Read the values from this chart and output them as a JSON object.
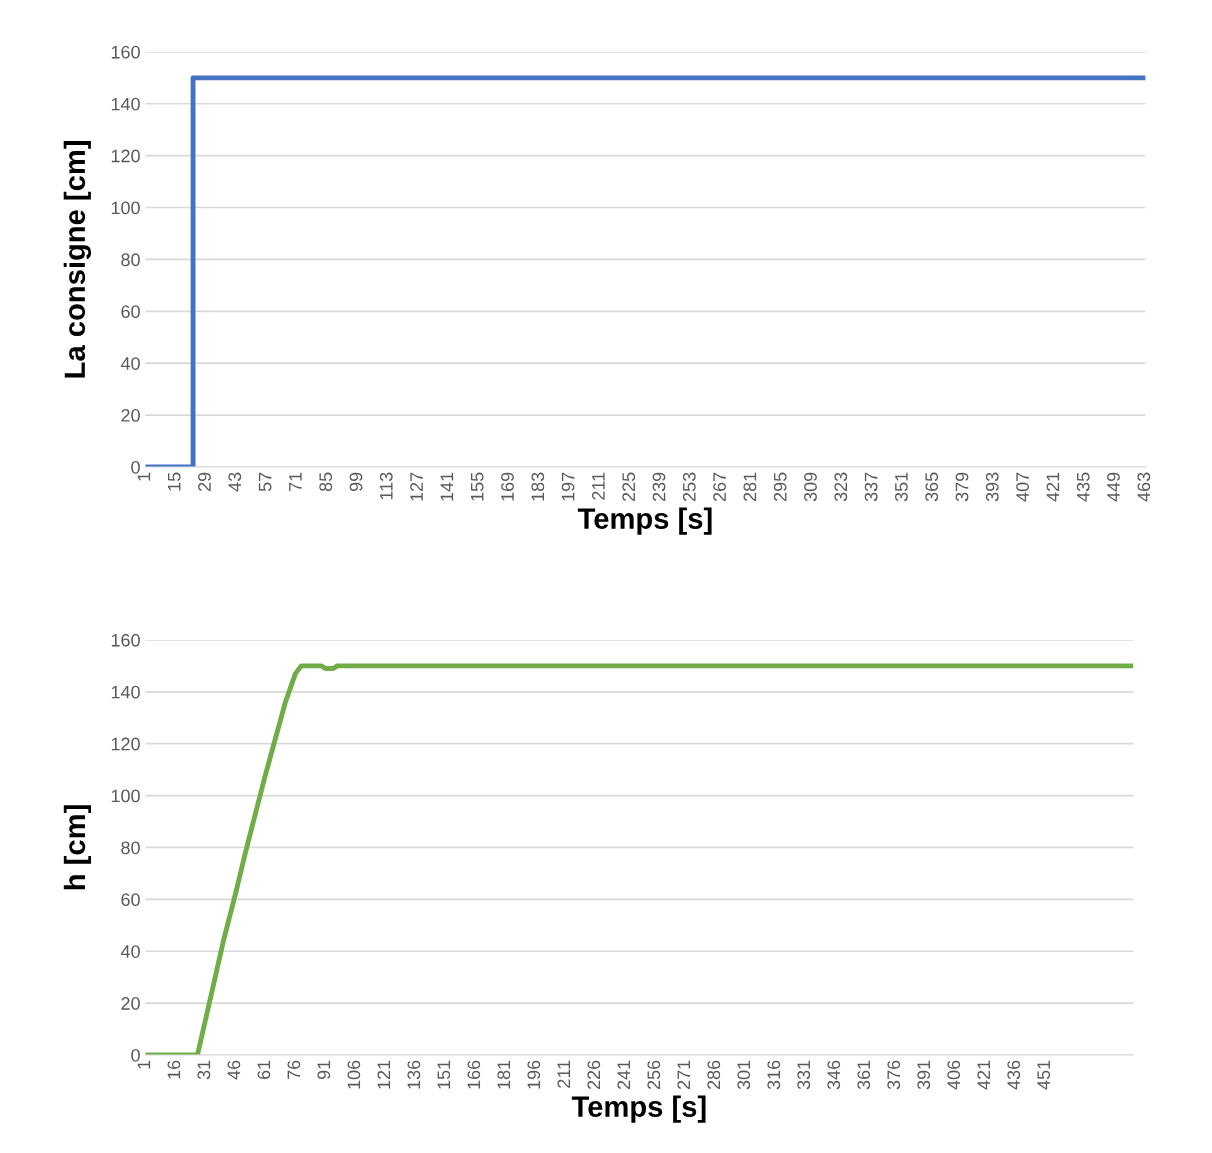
{
  "chart_data": [
    {
      "type": "line",
      "xlabel": "Temps [s]",
      "ylabel": "La consigne [cm]",
      "xlim": [
        1,
        463
      ],
      "xticks": [
        1,
        15,
        29,
        43,
        57,
        71,
        85,
        99,
        113,
        127,
        141,
        155,
        169,
        183,
        197,
        211,
        225,
        239,
        253,
        267,
        281,
        295,
        309,
        323,
        337,
        351,
        365,
        379,
        393,
        407,
        421,
        435,
        449,
        463
      ],
      "ylim": [
        0,
        160
      ],
      "yticks": [
        0,
        20,
        40,
        60,
        80,
        100,
        120,
        140,
        160
      ],
      "grid": "y",
      "legend": false,
      "series": [
        {
          "color": "#4472c4",
          "x": [
            1,
            23,
            23,
            463
          ],
          "values": [
            0,
            0,
            150,
            150
          ]
        }
      ]
    },
    {
      "type": "line",
      "xlabel": "Temps [s]",
      "ylabel": "h [cm]",
      "xlim": [
        1,
        495
      ],
      "xticks": [
        1,
        16,
        31,
        46,
        61,
        76,
        91,
        106,
        121,
        136,
        151,
        166,
        181,
        196,
        211,
        226,
        241,
        256,
        271,
        286,
        301,
        316,
        331,
        346,
        361,
        376,
        391,
        406,
        421,
        436,
        451
      ],
      "ylim": [
        0,
        160
      ],
      "yticks": [
        0,
        20,
        40,
        60,
        80,
        100,
        120,
        140,
        160
      ],
      "grid": "y",
      "legend": false,
      "series": [
        {
          "color": "#70ad47",
          "x": [
            1,
            27,
            30,
            35,
            40,
            46,
            51,
            56,
            61,
            66,
            71,
            76,
            79,
            81,
            89,
            91,
            95,
            97,
            495
          ],
          "values": [
            0,
            0,
            10,
            27,
            44,
            62,
            78,
            93,
            108,
            122,
            136,
            147,
            150,
            150,
            150,
            149,
            149,
            150,
            150
          ]
        }
      ]
    }
  ]
}
